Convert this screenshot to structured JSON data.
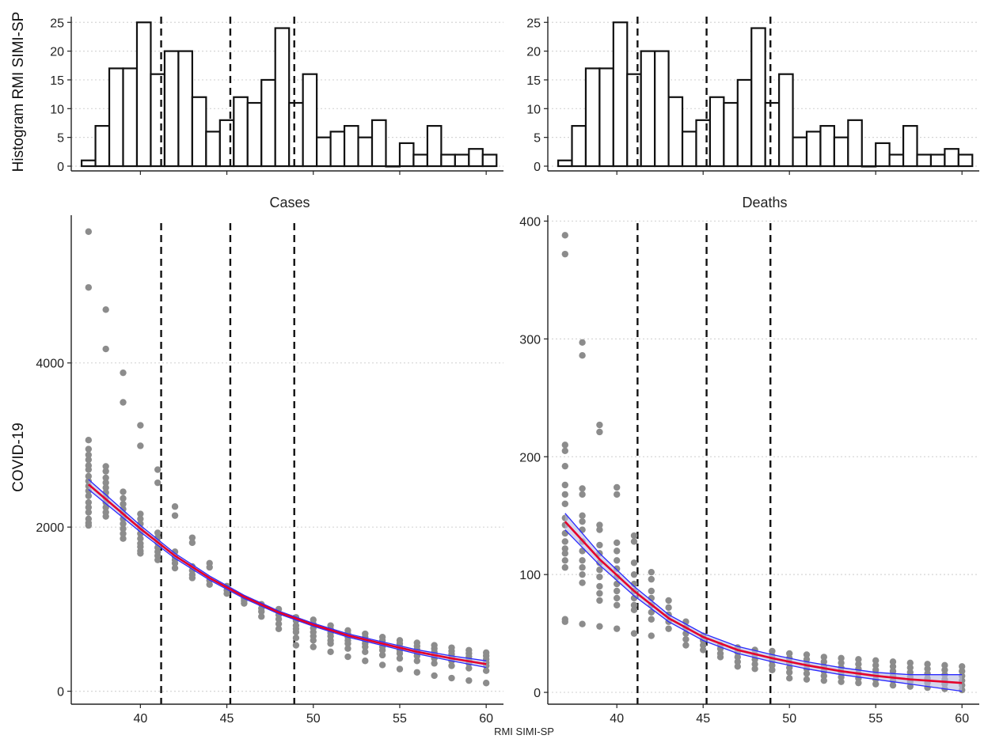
{
  "chart_data": [
    {
      "type": "bar",
      "panel": "histogram-left",
      "ylabel": "Histogram RMI SIMI-SP",
      "ylim": [
        0,
        26
      ],
      "yticks": [
        0,
        5,
        10,
        15,
        20,
        25
      ],
      "bins": [
        {
          "x": 37.0,
          "count": 1
        },
        {
          "x": 37.8,
          "count": 7
        },
        {
          "x": 38.6,
          "count": 17
        },
        {
          "x": 39.4,
          "count": 17
        },
        {
          "x": 40.2,
          "count": 25
        },
        {
          "x": 41.0,
          "count": 16
        },
        {
          "x": 41.8,
          "count": 20
        },
        {
          "x": 42.6,
          "count": 20
        },
        {
          "x": 43.4,
          "count": 12
        },
        {
          "x": 44.2,
          "count": 6
        },
        {
          "x": 45.0,
          "count": 8
        },
        {
          "x": 45.8,
          "count": 12
        },
        {
          "x": 46.6,
          "count": 11
        },
        {
          "x": 47.4,
          "count": 15
        },
        {
          "x": 48.2,
          "count": 24
        },
        {
          "x": 49.0,
          "count": 11
        },
        {
          "x": 49.8,
          "count": 16
        },
        {
          "x": 50.6,
          "count": 5
        },
        {
          "x": 51.4,
          "count": 6
        },
        {
          "x": 52.2,
          "count": 7
        },
        {
          "x": 53.0,
          "count": 5
        },
        {
          "x": 53.8,
          "count": 8
        },
        {
          "x": 54.6,
          "count": 0
        },
        {
          "x": 55.4,
          "count": 4
        },
        {
          "x": 56.2,
          "count": 2
        },
        {
          "x": 57.0,
          "count": 7
        },
        {
          "x": 57.8,
          "count": 2
        },
        {
          "x": 58.6,
          "count": 2
        },
        {
          "x": 59.4,
          "count": 3
        },
        {
          "x": 60.2,
          "count": 2
        }
      ],
      "vlines": [
        41.2,
        45.2,
        48.9
      ],
      "grid": "horizontal-dotted"
    },
    {
      "type": "bar",
      "panel": "histogram-right",
      "ylim": [
        0,
        26
      ],
      "yticks": [
        0,
        5,
        10,
        15,
        20,
        25
      ],
      "bins": [
        {
          "x": 37.0,
          "count": 1
        },
        {
          "x": 37.8,
          "count": 7
        },
        {
          "x": 38.6,
          "count": 17
        },
        {
          "x": 39.4,
          "count": 17
        },
        {
          "x": 40.2,
          "count": 25
        },
        {
          "x": 41.0,
          "count": 16
        },
        {
          "x": 41.8,
          "count": 20
        },
        {
          "x": 42.6,
          "count": 20
        },
        {
          "x": 43.4,
          "count": 12
        },
        {
          "x": 44.2,
          "count": 6
        },
        {
          "x": 45.0,
          "count": 8
        },
        {
          "x": 45.8,
          "count": 12
        },
        {
          "x": 46.6,
          "count": 11
        },
        {
          "x": 47.4,
          "count": 15
        },
        {
          "x": 48.2,
          "count": 24
        },
        {
          "x": 49.0,
          "count": 11
        },
        {
          "x": 49.8,
          "count": 16
        },
        {
          "x": 50.6,
          "count": 5
        },
        {
          "x": 51.4,
          "count": 6
        },
        {
          "x": 52.2,
          "count": 7
        },
        {
          "x": 53.0,
          "count": 5
        },
        {
          "x": 53.8,
          "count": 8
        },
        {
          "x": 54.6,
          "count": 0
        },
        {
          "x": 55.4,
          "count": 4
        },
        {
          "x": 56.2,
          "count": 2
        },
        {
          "x": 57.0,
          "count": 7
        },
        {
          "x": 57.8,
          "count": 2
        },
        {
          "x": 58.6,
          "count": 2
        },
        {
          "x": 59.4,
          "count": 3
        },
        {
          "x": 60.2,
          "count": 2
        }
      ],
      "vlines": [
        41.2,
        45.2,
        48.9
      ],
      "grid": "horizontal-dotted"
    },
    {
      "type": "scatter",
      "panel": "cases",
      "title": "Cases",
      "ylabel": "COVID-19",
      "xlabel": "RMI SIMI-SP",
      "xlim": [
        36.0,
        61.0
      ],
      "ylim": [
        -100,
        5800
      ],
      "xticks": [
        40,
        45,
        50,
        55,
        60
      ],
      "yticks": [
        0,
        2000,
        4000
      ],
      "vlines": [
        41.2,
        45.2,
        48.9
      ],
      "fit": {
        "color": "#e4002b",
        "band_color": "#2a2aff",
        "x": [
          37,
          40,
          42,
          44,
          46,
          48,
          50,
          52,
          54,
          56,
          58,
          60
        ],
        "y": [
          2520,
          1980,
          1650,
          1380,
          1150,
          960,
          810,
          680,
          580,
          480,
          400,
          330
        ],
        "band_halfwidth": [
          60,
          40,
          30,
          25,
          20,
          18,
          18,
          20,
          22,
          25,
          30,
          40
        ]
      },
      "points": [
        {
          "x": 37,
          "y": [
            5600,
            4920,
            3060,
            2950,
            2880,
            2820,
            2750,
            2700,
            2620,
            2560,
            2500,
            2440,
            2380,
            2300,
            2240,
            2180,
            2100,
            2050,
            2020
          ]
        },
        {
          "x": 38,
          "y": [
            4650,
            4170,
            2740,
            2680,
            2600,
            2540,
            2480,
            2420,
            2360,
            2300,
            2240,
            2180,
            2130
          ]
        },
        {
          "x": 39,
          "y": [
            3880,
            3520,
            2430,
            2350,
            2280,
            2220,
            2160,
            2100,
            2040,
            1980,
            1920,
            1860
          ]
        },
        {
          "x": 40,
          "y": [
            3240,
            2990,
            2160,
            2100,
            2040,
            1980,
            1920,
            1860,
            1800,
            1760,
            1710,
            1680
          ]
        },
        {
          "x": 41,
          "y": [
            2700,
            2540,
            1930,
            1870,
            1810,
            1750,
            1700,
            1650,
            1600
          ]
        },
        {
          "x": 42,
          "y": [
            2250,
            2140,
            1700,
            1640,
            1600,
            1560,
            1500
          ]
        },
        {
          "x": 43,
          "y": [
            1870,
            1810,
            1520,
            1470,
            1420,
            1380
          ]
        },
        {
          "x": 44,
          "y": [
            1560,
            1510,
            1350,
            1300
          ]
        },
        {
          "x": 45,
          "y": [
            1280,
            1230,
            1190
          ]
        },
        {
          "x": 46,
          "y": [
            1130,
            1100,
            1070
          ]
        },
        {
          "x": 47,
          "y": [
            1060,
            1010,
            970,
            910
          ]
        },
        {
          "x": 48,
          "y": [
            1000,
            930,
            880,
            820,
            760
          ]
        },
        {
          "x": 49,
          "y": [
            900,
            860,
            800,
            760,
            720,
            650,
            560
          ]
        },
        {
          "x": 50,
          "y": [
            870,
            820,
            770,
            720,
            670,
            620,
            540
          ]
        },
        {
          "x": 51,
          "y": [
            800,
            760,
            710,
            670,
            620,
            580,
            480
          ]
        },
        {
          "x": 52,
          "y": [
            740,
            700,
            660,
            620,
            580,
            520,
            420
          ]
        },
        {
          "x": 53,
          "y": [
            700,
            660,
            620,
            580,
            540,
            480,
            370
          ]
        },
        {
          "x": 54,
          "y": [
            660,
            620,
            580,
            540,
            500,
            440,
            320
          ]
        },
        {
          "x": 55,
          "y": [
            620,
            580,
            540,
            500,
            460,
            400,
            270
          ]
        },
        {
          "x": 56,
          "y": [
            590,
            550,
            510,
            470,
            430,
            370,
            230
          ]
        },
        {
          "x": 57,
          "y": [
            560,
            520,
            480,
            440,
            400,
            340,
            190
          ]
        },
        {
          "x": 58,
          "y": [
            530,
            490,
            450,
            410,
            370,
            310,
            160
          ]
        },
        {
          "x": 59,
          "y": [
            500,
            460,
            420,
            380,
            340,
            280,
            130
          ]
        },
        {
          "x": 60,
          "y": [
            470,
            430,
            390,
            350,
            310,
            250,
            100
          ]
        }
      ]
    },
    {
      "type": "scatter",
      "panel": "deaths",
      "title": "Deaths",
      "xlim": [
        36.0,
        61.0
      ],
      "ylim": [
        -6,
        405
      ],
      "xticks": [
        40,
        45,
        50,
        55,
        60
      ],
      "yticks": [
        0,
        100,
        200,
        300,
        400
      ],
      "vlines": [
        41.2,
        45.2,
        48.9
      ],
      "fit": {
        "color": "#e4002b",
        "band_color": "#2a2aff",
        "x": [
          37,
          39,
          41,
          43,
          45,
          47,
          49,
          51,
          53,
          55,
          57,
          60
        ],
        "y": [
          145,
          113,
          86,
          63,
          47,
          36,
          29,
          23,
          18,
          14,
          11,
          8
        ],
        "band_halfwidth": [
          7,
          5,
          4,
          3,
          3,
          3,
          3,
          3,
          3,
          3,
          4,
          7
        ]
      },
      "points": [
        {
          "x": 37,
          "y": [
            388,
            372,
            210,
            205,
            192,
            176,
            168,
            160,
            148,
            142,
            135,
            128,
            122,
            118,
            112,
            106,
            62,
            60
          ]
        },
        {
          "x": 38,
          "y": [
            297,
            286,
            173,
            168,
            150,
            145,
            138,
            128,
            120,
            112,
            106,
            100,
            93,
            58
          ]
        },
        {
          "x": 39,
          "y": [
            227,
            221,
            142,
            138,
            125,
            118,
            110,
            104,
            98,
            90,
            84,
            78,
            56
          ]
        },
        {
          "x": 40,
          "y": [
            174,
            168,
            127,
            120,
            112,
            105,
            98,
            92,
            86,
            80,
            74,
            54
          ]
        },
        {
          "x": 41,
          "y": [
            133,
            128,
            110,
            100,
            92,
            86,
            80,
            74,
            70,
            50
          ]
        },
        {
          "x": 42,
          "y": [
            102,
            96,
            86,
            80,
            74,
            68,
            62,
            48
          ]
        },
        {
          "x": 43,
          "y": [
            78,
            72,
            66,
            60,
            54
          ]
        },
        {
          "x": 44,
          "y": [
            60,
            55,
            50,
            45,
            40
          ]
        },
        {
          "x": 45,
          "y": [
            48,
            44,
            40,
            36
          ]
        },
        {
          "x": 46,
          "y": [
            40,
            37,
            33,
            30
          ]
        },
        {
          "x": 47,
          "y": [
            38,
            34,
            30,
            26,
            22
          ]
        },
        {
          "x": 48,
          "y": [
            36,
            32,
            28,
            24,
            20
          ]
        },
        {
          "x": 49,
          "y": [
            35,
            31,
            27,
            23,
            19
          ]
        },
        {
          "x": 50,
          "y": [
            33,
            29,
            25,
            21,
            17,
            12
          ]
        },
        {
          "x": 51,
          "y": [
            32,
            28,
            24,
            20,
            16,
            11
          ]
        },
        {
          "x": 52,
          "y": [
            30,
            26,
            22,
            18,
            14,
            10
          ]
        },
        {
          "x": 53,
          "y": [
            29,
            25,
            21,
            17,
            13,
            9
          ]
        },
        {
          "x": 54,
          "y": [
            28,
            24,
            20,
            16,
            12,
            8
          ]
        },
        {
          "x": 55,
          "y": [
            27,
            23,
            19,
            15,
            11,
            7
          ]
        },
        {
          "x": 56,
          "y": [
            26,
            22,
            18,
            14,
            10,
            6
          ]
        },
        {
          "x": 57,
          "y": [
            25,
            21,
            17,
            13,
            9,
            5
          ]
        },
        {
          "x": 58,
          "y": [
            24,
            20,
            16,
            12,
            8,
            4
          ]
        },
        {
          "x": 59,
          "y": [
            23,
            19,
            15,
            11,
            7,
            3
          ]
        },
        {
          "x": 60,
          "y": [
            22,
            18,
            14,
            10,
            6,
            2
          ]
        }
      ]
    }
  ],
  "labels": {
    "hist_ylabel": "Histogram RMI SIMI-SP",
    "ylabel": "COVID-19",
    "xlabel": "RMI SIMI-SP",
    "cases_title": "Cases",
    "deaths_title": "Deaths"
  },
  "colors": {
    "point": "#8c8c8c",
    "fit": "#e4002b",
    "band": "#2a2aff",
    "vline": "#111111",
    "grid": "#d6d6d6"
  }
}
